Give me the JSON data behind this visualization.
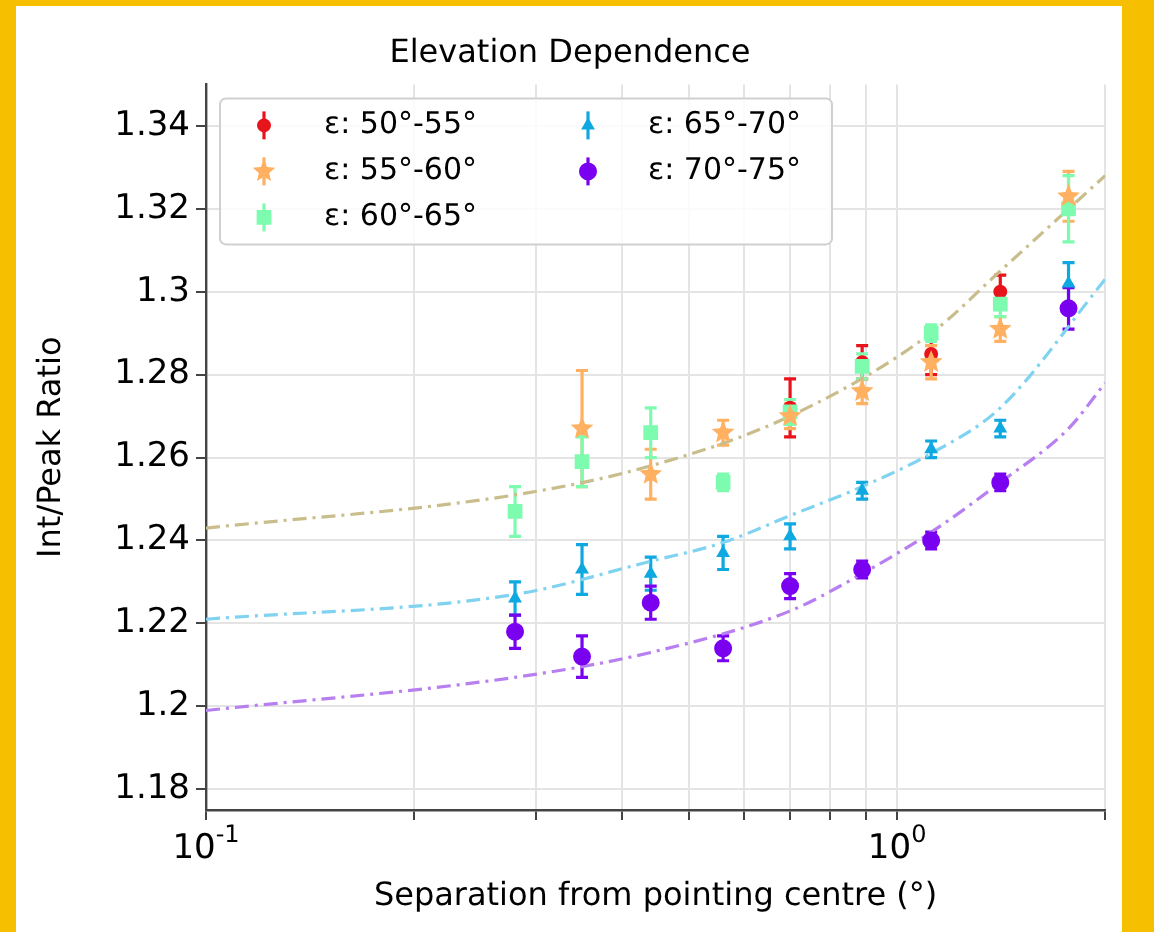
{
  "chart_data": {
    "type": "scatter",
    "title": "Elevation Dependence",
    "xlabel": "Separation from pointing centre (°)",
    "ylabel": "Int/Peak Ratio",
    "log": "x",
    "grid": true,
    "legend": "top left",
    "xlim": [
      0.1,
      2
    ],
    "xticks": [
      {
        "value": 0.1,
        "label": "10$^{-1}$"
      },
      {
        "value": 0.2,
        "label": null
      },
      {
        "value": 0.3,
        "label": null
      },
      {
        "value": 0.4,
        "label": null
      },
      {
        "value": 0.5,
        "label": null
      },
      {
        "value": 0.6,
        "label": null
      },
      {
        "value": 0.7,
        "label": null
      },
      {
        "value": 0.8,
        "label": null
      },
      {
        "value": 0.9,
        "label": null
      },
      {
        "value": 1,
        "label": "10$^{0}$"
      },
      {
        "value": 2,
        "label": null
      }
    ],
    "ylim": [
      1.175,
      1.35
    ],
    "yticks": [
      1.18,
      1.2,
      1.22,
      1.24,
      1.26,
      1.28,
      1.3,
      1.32,
      1.34
    ],
    "series": [
      {
        "type": "line",
        "color": "#c9bd8c",
        "line_style": "dashed",
        "marker": "none",
        "x": [
          0.1,
          0.28,
          0.44,
          0.7,
          1.12,
          1.41,
          2
        ],
        "values": [
          1.243,
          1.251,
          1.258,
          1.27,
          1.29,
          1.305,
          1.328
        ]
      },
      {
        "type": "line",
        "color": "#7fd3f0",
        "line_style": "dashed",
        "marker": "none",
        "x": [
          0.1,
          0.28,
          0.44,
          0.56,
          0.7,
          0.89,
          1.12,
          1.41,
          2
        ],
        "values": [
          1.221,
          1.227,
          1.235,
          1.2395,
          1.246,
          1.253,
          1.261,
          1.272,
          1.303
        ]
      },
      {
        "type": "line",
        "color": "#b87ff0",
        "line_style": "dashed",
        "marker": "none",
        "x": [
          0.1,
          0.28,
          0.44,
          0.7,
          0.89,
          1.12,
          1.41,
          1.77,
          2
        ],
        "values": [
          1.199,
          1.207,
          1.213,
          1.223,
          1.232,
          1.242,
          1.254,
          1.267,
          1.278
        ]
      },
      {
        "type": "scatter",
        "name": "ε: 50°-55°",
        "color": "#e8141c",
        "marker": "circle",
        "x": [
          0.7,
          0.89,
          1.12,
          1.41
        ],
        "values": [
          1.272,
          1.283,
          1.285,
          1.3
        ],
        "errors": [
          0.007,
          0.004,
          0.005,
          0.004
        ]
      },
      {
        "type": "scatter",
        "name": "ε: 55°-60°",
        "color": "#ffb060",
        "marker": "star",
        "x": [
          0.35,
          0.44,
          0.56,
          0.7,
          0.89,
          1.12,
          1.41,
          1.77
        ],
        "values": [
          1.267,
          1.256,
          1.266,
          1.27,
          1.276,
          1.283,
          1.291,
          1.323
        ],
        "errors": [
          0.014,
          0.006,
          0.003,
          0.003,
          0.003,
          0.004,
          0.003,
          0.006
        ]
      },
      {
        "type": "scatter",
        "name": "ε: 60°-65°",
        "color": "#7dfcb0",
        "marker": "square",
        "x": [
          0.28,
          0.35,
          0.44,
          0.56,
          0.7,
          0.89,
          1.12,
          1.41,
          1.77
        ],
        "values": [
          1.247,
          1.259,
          1.266,
          1.254,
          1.271,
          1.282,
          1.29,
          1.297,
          1.32
        ],
        "errors": [
          0.006,
          0.006,
          0.006,
          0.002,
          0.003,
          0.003,
          0.002,
          0.003,
          0.008
        ]
      },
      {
        "type": "scatter",
        "name": "ε: 65°-70°",
        "color": "#0fa8e0",
        "marker": "triangle",
        "x": [
          0.28,
          0.35,
          0.44,
          0.56,
          0.7,
          0.89,
          1.12,
          1.41,
          1.77
        ],
        "values": [
          1.226,
          1.233,
          1.232,
          1.237,
          1.241,
          1.252,
          1.262,
          1.267,
          1.302
        ],
        "errors": [
          0.004,
          0.006,
          0.004,
          0.004,
          0.003,
          0.002,
          0.002,
          0.002,
          0.005
        ]
      },
      {
        "type": "scatter",
        "name": "ε: 70°-75°",
        "color": "#7a00f0",
        "marker": "circle",
        "x": [
          0.28,
          0.35,
          0.44,
          0.56,
          0.7,
          0.89,
          1.12,
          1.41,
          1.77
        ],
        "values": [
          1.218,
          1.212,
          1.225,
          1.214,
          1.229,
          1.233,
          1.24,
          1.254,
          1.296
        ],
        "errors": [
          0.004,
          0.005,
          0.004,
          0.003,
          0.003,
          0.002,
          0.002,
          0.002,
          0.005
        ]
      }
    ]
  }
}
